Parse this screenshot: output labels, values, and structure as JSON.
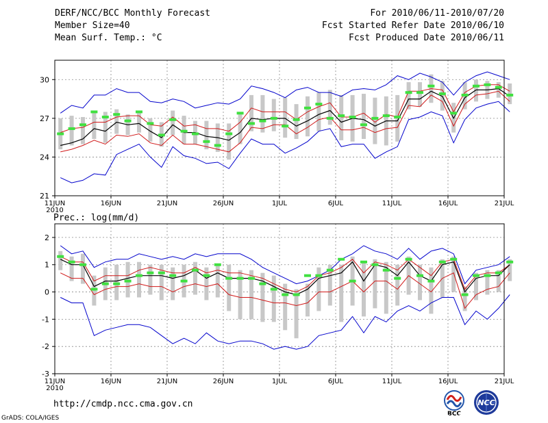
{
  "header": {
    "title": "DERF/NCC/BCC Monthly Forecast",
    "member_size": "Member Size=40",
    "variable": "Mean Surf. Temp.: °C",
    "period": "For 2010/06/11-2010/07/20",
    "started": "Fcst Started Refer Date 2010/06/10",
    "produced": "Fcst Produced Date 2010/06/11"
  },
  "footer": {
    "url": "http://cmdp.ncc.cma.gov.cn",
    "credit": "GrADS: COLA/IGES",
    "logo_left": "BCC",
    "logo_right": "NCC"
  },
  "colors": {
    "box": "#c8c8c8",
    "ensemble_mean": "#000000",
    "spread": "#d01818",
    "extreme": "#0000cc",
    "observed": "#40e040"
  },
  "chart_data": [
    {
      "type": "line",
      "title": "Mean Surf. Temp.: °C",
      "xlabel": "",
      "ylabel": "",
      "ylim": [
        21,
        31.5
      ],
      "yticks": [
        21,
        24,
        27,
        30
      ],
      "x_range": [
        0,
        40
      ],
      "xticks": [
        {
          "x": 0,
          "label": "11JUN",
          "sub": "2010"
        },
        {
          "x": 5,
          "label": "16JUN"
        },
        {
          "x": 10,
          "label": "21JUN"
        },
        {
          "x": 15,
          "label": "26JUN"
        },
        {
          "x": 20,
          "label": "1JUL"
        },
        {
          "x": 25,
          "label": "6JUL"
        },
        {
          "x": 30,
          "label": "11JUL"
        },
        {
          "x": 35,
          "label": "16JUL"
        },
        {
          "x": 40,
          "label": "21JUL"
        }
      ],
      "grid": true,
      "series": [
        {
          "name": "max",
          "values": [
            27.4,
            28.0,
            27.8,
            28.8,
            28.8,
            29.3,
            29.0,
            29.0,
            28.3,
            28.2,
            28.5,
            28.3,
            27.8,
            28.0,
            28.2,
            28.1,
            28.5,
            29.5,
            29.3,
            29.0,
            28.6,
            29.2,
            29.4,
            29.0,
            29.0,
            28.7,
            29.2,
            29.3,
            29.2,
            29.6,
            30.3,
            30.0,
            30.5,
            30.2,
            29.8,
            28.8,
            29.8,
            30.3,
            30.6,
            30.3,
            30.0
          ]
        },
        {
          "name": "upper",
          "values": [
            25.9,
            26.2,
            26.3,
            26.7,
            26.7,
            27.1,
            27.2,
            27.2,
            26.5,
            26.4,
            27.1,
            26.4,
            26.5,
            26.2,
            26.2,
            26.0,
            26.7,
            27.8,
            27.5,
            27.5,
            27.5,
            26.9,
            27.5,
            27.9,
            28.2,
            27.1,
            27.1,
            27.4,
            26.7,
            27.3,
            27.1,
            29.1,
            29.1,
            29.3,
            29.2,
            27.5,
            29.0,
            29.5,
            29.6,
            29.6,
            29.1
          ]
        },
        {
          "name": "mean",
          "values": [
            24.9,
            25.1,
            25.4,
            26.2,
            26.0,
            26.7,
            26.5,
            26.6,
            26.0,
            25.5,
            26.5,
            25.9,
            25.9,
            25.6,
            25.5,
            25.3,
            25.9,
            27.0,
            26.9,
            27.0,
            27.0,
            26.4,
            26.8,
            27.3,
            27.6,
            26.7,
            27.0,
            26.9,
            26.4,
            26.8,
            26.8,
            28.5,
            28.5,
            29.1,
            28.7,
            27.0,
            28.6,
            29.2,
            29.2,
            29.3,
            28.7
          ]
        },
        {
          "name": "lower",
          "values": [
            24.4,
            24.6,
            24.9,
            25.3,
            25.0,
            25.7,
            25.6,
            25.8,
            25.1,
            24.9,
            25.7,
            25.0,
            25.0,
            24.8,
            24.6,
            24.4,
            25.1,
            26.3,
            26.2,
            26.5,
            26.5,
            25.8,
            26.3,
            26.9,
            27.1,
            26.1,
            26.1,
            26.3,
            25.9,
            26.2,
            26.3,
            28.0,
            27.9,
            28.8,
            28.3,
            26.4,
            28.1,
            28.8,
            28.9,
            29.1,
            28.3
          ]
        },
        {
          "name": "min",
          "values": [
            22.4,
            22.0,
            22.2,
            22.7,
            22.6,
            24.2,
            24.6,
            25.0,
            24.0,
            23.2,
            24.8,
            24.1,
            23.9,
            23.5,
            23.6,
            23.1,
            24.3,
            25.4,
            25.0,
            25.0,
            24.3,
            24.7,
            25.2,
            26.0,
            26.2,
            24.8,
            25.0,
            25.0,
            23.9,
            24.4,
            24.8,
            26.9,
            27.1,
            27.5,
            27.2,
            25.1,
            26.9,
            27.8,
            28.1,
            28.3,
            27.5
          ]
        },
        {
          "name": "box_top",
          "values": [
            27.0,
            27.2,
            27.1,
            27.4,
            27.5,
            27.7,
            27.3,
            27.5,
            27.0,
            26.7,
            27.6,
            27.2,
            26.8,
            26.8,
            26.6,
            26.6,
            27.3,
            28.8,
            28.8,
            28.5,
            28.6,
            28.1,
            28.7,
            29.0,
            29.2,
            28.8,
            28.8,
            28.9,
            28.6,
            28.7,
            28.8,
            29.8,
            29.8,
            30.4,
            29.9,
            28.2,
            29.8,
            30.0,
            29.9,
            29.8,
            29.7
          ]
        },
        {
          "name": "box_bottom",
          "values": [
            24.6,
            24.9,
            25.0,
            25.4,
            25.1,
            25.8,
            25.7,
            25.9,
            25.2,
            24.8,
            25.7,
            25.0,
            25.0,
            24.6,
            24.4,
            23.8,
            25.0,
            26.0,
            25.9,
            26.0,
            25.5,
            25.4,
            25.6,
            26.0,
            26.5,
            25.3,
            25.2,
            25.4,
            25.0,
            24.9,
            25.2,
            27.7,
            27.9,
            28.2,
            27.6,
            25.9,
            27.7,
            28.3,
            28.5,
            28.6,
            28.1
          ]
        },
        {
          "name": "observed",
          "values": [
            25.8,
            26.2,
            26.5,
            27.5,
            27.1,
            27.3,
            26.8,
            27.5,
            26.6,
            25.7,
            26.9,
            26.0,
            25.8,
            25.2,
            24.9,
            25.8,
            27.4,
            26.6,
            26.8,
            27.0,
            26.4,
            26.9,
            27.8,
            28.1,
            27.0,
            27.2,
            27.1,
            26.5,
            27.0,
            27.2,
            27.1,
            29.0,
            29.0,
            29.5,
            28.9,
            27.4,
            28.8,
            29.5,
            29.6,
            29.4,
            28.8
          ]
        }
      ]
    },
    {
      "type": "line",
      "title": "Prec.: log(mm/d)",
      "xlabel": "",
      "ylabel": "",
      "ylim": [
        -3,
        2.5
      ],
      "yticks": [
        -3,
        -2,
        -1,
        0,
        1,
        2
      ],
      "x_range": [
        0,
        40
      ],
      "xticks": [
        {
          "x": 0,
          "label": "11JUN",
          "sub": "2010"
        },
        {
          "x": 5,
          "label": "16JUN"
        },
        {
          "x": 10,
          "label": "21JUN"
        },
        {
          "x": 15,
          "label": "26JUN"
        },
        {
          "x": 20,
          "label": "1JUL"
        },
        {
          "x": 25,
          "label": "6JUL"
        },
        {
          "x": 30,
          "label": "11JUL"
        },
        {
          "x": 35,
          "label": "16JUL"
        },
        {
          "x": 40,
          "label": "21JUL"
        }
      ],
      "grid": true,
      "series": [
        {
          "name": "max",
          "values": [
            1.7,
            1.4,
            1.5,
            0.9,
            1.1,
            1.2,
            1.2,
            1.4,
            1.3,
            1.2,
            1.3,
            1.2,
            1.4,
            1.3,
            1.4,
            1.4,
            1.4,
            1.2,
            0.9,
            0.7,
            0.5,
            0.3,
            0.4,
            0.6,
            0.8,
            1.2,
            1.4,
            1.7,
            1.5,
            1.4,
            1.2,
            1.6,
            1.2,
            1.5,
            1.6,
            1.4,
            0.3,
            0.8,
            0.9,
            1.0,
            1.3
          ]
        },
        {
          "name": "upper",
          "values": [
            1.3,
            1.1,
            1.1,
            0.4,
            0.6,
            0.6,
            0.6,
            0.8,
            0.9,
            0.8,
            0.7,
            0.7,
            0.9,
            0.7,
            0.8,
            0.7,
            0.7,
            0.6,
            0.5,
            0.3,
            0.1,
            0.0,
            0.2,
            0.6,
            0.7,
            0.9,
            1.2,
            0.7,
            1.1,
            1.0,
            0.8,
            1.2,
            0.9,
            0.6,
            1.1,
            1.2,
            0.1,
            0.6,
            0.7,
            0.7,
            1.0
          ]
        },
        {
          "name": "mean",
          "values": [
            1.2,
            1.0,
            1.0,
            0.2,
            0.4,
            0.4,
            0.5,
            0.6,
            0.6,
            0.6,
            0.5,
            0.6,
            0.8,
            0.5,
            0.7,
            0.5,
            0.5,
            0.5,
            0.4,
            0.2,
            0.0,
            -0.1,
            0.1,
            0.5,
            0.6,
            0.7,
            1.1,
            0.4,
            1.0,
            0.9,
            0.6,
            1.1,
            0.6,
            0.4,
            1.0,
            1.1,
            0.0,
            0.5,
            0.6,
            0.6,
            1.0
          ]
        },
        {
          "name": "lower",
          "values": [
            0.7,
            0.5,
            0.5,
            -0.1,
            0.1,
            0.2,
            0.2,
            0.3,
            0.2,
            0.2,
            0.0,
            0.2,
            0.3,
            0.2,
            0.3,
            -0.1,
            -0.2,
            -0.2,
            -0.3,
            -0.4,
            -0.4,
            -0.5,
            -0.4,
            0.0,
            0.0,
            0.2,
            0.4,
            0.0,
            0.4,
            0.4,
            0.1,
            0.6,
            0.3,
            0.0,
            0.5,
            0.7,
            -0.6,
            -0.1,
            0.1,
            0.2,
            0.7
          ]
        },
        {
          "name": "min",
          "values": [
            -0.2,
            -0.4,
            -0.4,
            -1.6,
            -1.4,
            -1.3,
            -1.2,
            -1.2,
            -1.3,
            -1.6,
            -1.9,
            -1.7,
            -1.9,
            -1.5,
            -1.8,
            -1.9,
            -1.8,
            -1.8,
            -1.9,
            -2.1,
            -2.0,
            -2.1,
            -2.0,
            -1.6,
            -1.5,
            -1.4,
            -0.9,
            -1.5,
            -0.9,
            -1.1,
            -0.7,
            -0.5,
            -0.7,
            -0.4,
            -0.2,
            -0.2,
            -1.2,
            -0.7,
            -1.0,
            -0.6,
            -0.1
          ]
        },
        {
          "name": "box_top",
          "values": [
            1.5,
            1.3,
            1.4,
            0.6,
            0.9,
            1.0,
            1.1,
            1.1,
            1.0,
            1.0,
            0.9,
            1.0,
            1.1,
            0.9,
            1.0,
            1.0,
            0.8,
            0.8,
            0.7,
            0.6,
            0.3,
            0.1,
            0.3,
            0.9,
            1.0,
            1.0,
            1.3,
            1.1,
            1.2,
            1.1,
            1.0,
            1.3,
            1.0,
            0.9,
            1.2,
            1.3,
            0.2,
            0.7,
            0.8,
            0.8,
            1.2
          ]
        },
        {
          "name": "box_bottom",
          "values": [
            0.8,
            0.4,
            0.3,
            -0.5,
            -0.3,
            -0.3,
            -0.2,
            -0.2,
            -0.1,
            -0.3,
            -0.3,
            -0.2,
            -0.1,
            -0.3,
            -0.2,
            -0.7,
            -1.0,
            -1.0,
            -1.1,
            -1.1,
            -1.4,
            -1.7,
            -0.9,
            -0.7,
            -0.5,
            -1.1,
            -0.5,
            -0.9,
            -0.6,
            -0.8,
            -0.5,
            -0.1,
            -0.3,
            -0.8,
            -0.2,
            0.0,
            -0.7,
            -0.3,
            -0.1,
            0.0,
            0.4
          ]
        },
        {
          "name": "observed",
          "values": [
            1.3,
            1.1,
            1.0,
            0.1,
            0.3,
            0.3,
            0.4,
            0.6,
            0.7,
            0.7,
            0.6,
            0.4,
            0.8,
            0.6,
            1.0,
            0.5,
            0.5,
            0.5,
            0.3,
            0.1,
            -0.1,
            -0.1,
            0.6,
            0.6,
            0.8,
            1.2,
            0.4,
            1.1,
            1.0,
            0.8,
            0.5,
            1.2,
            0.6,
            0.4,
            1.1,
            1.2,
            -0.1,
            0.6,
            0.6,
            0.7,
            1.1
          ]
        }
      ]
    }
  ]
}
